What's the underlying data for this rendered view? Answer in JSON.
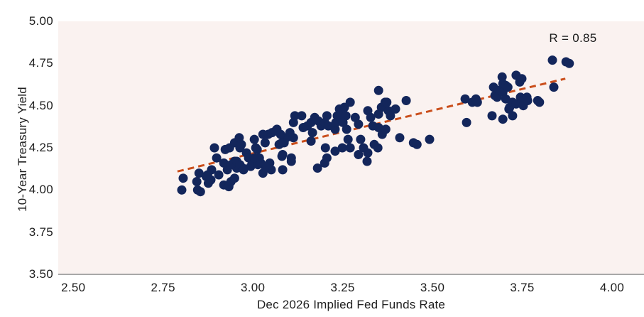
{
  "chart_data": {
    "type": "scatter",
    "title": "",
    "xlabel": "Dec 2026 Implied Fed Funds Rate",
    "ylabel": "10-Year Treasury Yield",
    "annotation": "R = 0.85",
    "xlim": [
      2.458,
      4.089
    ],
    "ylim": [
      3.5,
      5.0
    ],
    "x_ticks": [
      "2.50",
      "2.75",
      "3.00",
      "3.25",
      "3.50",
      "3.75",
      "4.00"
    ],
    "x_tick_values": [
      2.5,
      2.75,
      3.0,
      3.25,
      3.5,
      3.75,
      4.0
    ],
    "y_ticks": [
      "3.50",
      "3.75",
      "4.00",
      "4.25",
      "4.50",
      "4.75",
      "5.00"
    ],
    "y_tick_values": [
      3.5,
      3.75,
      4.0,
      4.25,
      4.5,
      4.75,
      5.0
    ],
    "grid": false,
    "legend": "none",
    "point_color": "#13265b",
    "plot_bg": "#faf2f0",
    "axis_line_color": "#a8a8a8",
    "trend_line": {
      "style": "dashed",
      "color": "#ca4e1b",
      "x1": 2.79,
      "y1": 4.11,
      "x2": 3.87,
      "y2": 4.66
    },
    "points": [
      [
        2.806,
        4.07
      ],
      [
        2.802,
        4.0
      ],
      [
        2.844,
        4.05
      ],
      [
        2.846,
        4.0
      ],
      [
        2.854,
        3.99
      ],
      [
        2.85,
        4.1
      ],
      [
        2.87,
        4.08
      ],
      [
        2.876,
        4.04
      ],
      [
        2.883,
        4.06
      ],
      [
        2.874,
        4.09
      ],
      [
        2.885,
        4.12
      ],
      [
        2.893,
        4.25
      ],
      [
        2.899,
        4.19
      ],
      [
        2.905,
        4.09
      ],
      [
        2.919,
        4.03
      ],
      [
        2.923,
        4.24
      ],
      [
        2.935,
        4.25
      ],
      [
        2.933,
        4.02
      ],
      [
        2.949,
        4.28
      ],
      [
        2.962,
        4.31
      ],
      [
        2.964,
        4.25
      ],
      [
        2.949,
        4.17
      ],
      [
        2.955,
        4.13
      ],
      [
        2.972,
        4.13
      ],
      [
        2.982,
        4.22
      ],
      [
        2.988,
        4.19
      ],
      [
        2.994,
        4.14
      ],
      [
        3.004,
        4.3
      ],
      [
        3.008,
        4.25
      ],
      [
        3.018,
        4.19
      ],
      [
        3.022,
        4.16
      ],
      [
        3.028,
        4.33
      ],
      [
        3.034,
        4.28
      ],
      [
        3.043,
        4.33
      ],
      [
        3.053,
        4.34
      ],
      [
        3.067,
        4.36
      ],
      [
        3.073,
        4.27
      ],
      [
        3.047,
        4.16
      ],
      [
        3.051,
        4.12
      ],
      [
        3.028,
        4.1
      ],
      [
        3.081,
        4.2
      ],
      [
        2.919,
        4.16
      ],
      [
        2.929,
        4.12
      ],
      [
        2.939,
        4.15
      ],
      [
        2.955,
        4.17
      ],
      [
        2.964,
        4.15
      ],
      [
        2.939,
        4.05
      ],
      [
        2.949,
        4.07
      ],
      [
        2.974,
        4.12
      ],
      [
        2.998,
        4.17
      ],
      [
        3.014,
        4.15
      ],
      [
        3.004,
        4.19
      ],
      [
        3.034,
        4.14
      ],
      [
        2.968,
        4.27
      ],
      [
        3.012,
        4.24
      ],
      [
        3.093,
        4.31
      ],
      [
        3.087,
        4.28
      ],
      [
        3.063,
        4.35
      ],
      [
        3.077,
        4.33
      ],
      [
        3.081,
        4.28
      ],
      [
        3.083,
        4.21
      ],
      [
        3.103,
        4.34
      ],
      [
        3.113,
        4.4
      ],
      [
        3.117,
        4.44
      ],
      [
        3.113,
        4.31
      ],
      [
        3.107,
        4.19
      ],
      [
        3.136,
        4.44
      ],
      [
        3.14,
        4.37
      ],
      [
        3.152,
        4.38
      ],
      [
        3.162,
        4.4
      ],
      [
        3.166,
        4.34
      ],
      [
        3.172,
        4.43
      ],
      [
        3.182,
        4.41
      ],
      [
        3.162,
        4.29
      ],
      [
        3.19,
        4.38
      ],
      [
        3.2,
        4.4
      ],
      [
        3.206,
        4.44
      ],
      [
        3.21,
        4.38
      ],
      [
        3.202,
        4.25
      ],
      [
        3.206,
        4.19
      ],
      [
        3.229,
        4.36
      ],
      [
        3.231,
        4.4
      ],
      [
        3.235,
        4.44
      ],
      [
        3.241,
        4.48
      ],
      [
        3.245,
        4.45
      ],
      [
        3.255,
        4.49
      ],
      [
        3.259,
        4.44
      ],
      [
        3.251,
        4.4
      ],
      [
        3.261,
        4.36
      ],
      [
        3.271,
        4.52
      ],
      [
        3.285,
        4.43
      ],
      [
        3.294,
        4.39
      ],
      [
        3.265,
        4.3
      ],
      [
        3.271,
        4.25
      ],
      [
        3.249,
        4.25
      ],
      [
        3.229,
        4.23
      ],
      [
        3.3,
        4.3
      ],
      [
        3.308,
        4.25
      ],
      [
        3.32,
        4.47
      ],
      [
        3.328,
        4.43
      ],
      [
        3.334,
        4.38
      ],
      [
        3.35,
        4.45
      ],
      [
        3.358,
        4.49
      ],
      [
        3.368,
        4.52
      ],
      [
        3.377,
        4.47
      ],
      [
        3.383,
        4.44
      ],
      [
        3.35,
        4.37
      ],
      [
        3.36,
        4.33
      ],
      [
        3.37,
        4.36
      ],
      [
        3.348,
        4.25
      ],
      [
        3.338,
        4.27
      ],
      [
        3.32,
        4.22
      ],
      [
        3.294,
        4.21
      ],
      [
        3.318,
        4.17
      ],
      [
        3.2,
        4.16
      ],
      [
        3.18,
        4.13
      ],
      [
        3.107,
        4.17
      ],
      [
        3.083,
        4.12
      ],
      [
        3.35,
        4.59
      ],
      [
        3.373,
        4.52
      ],
      [
        3.397,
        4.48
      ],
      [
        3.427,
        4.53
      ],
      [
        3.409,
        4.31
      ],
      [
        3.447,
        4.28
      ],
      [
        3.457,
        4.27
      ],
      [
        3.492,
        4.3
      ],
      [
        3.591,
        4.54
      ],
      [
        3.611,
        4.52
      ],
      [
        3.595,
        4.4
      ],
      [
        3.621,
        4.54
      ],
      [
        3.625,
        4.52
      ],
      [
        3.666,
        4.44
      ],
      [
        3.67,
        4.61
      ],
      [
        3.674,
        4.56
      ],
      [
        3.68,
        4.55
      ],
      [
        3.686,
        4.59
      ],
      [
        3.694,
        4.67
      ],
      [
        3.696,
        4.63
      ],
      [
        3.696,
        4.58
      ],
      [
        3.704,
        4.62
      ],
      [
        3.71,
        4.61
      ],
      [
        3.696,
        4.42
      ],
      [
        3.704,
        4.54
      ],
      [
        3.713,
        4.48
      ],
      [
        3.715,
        4.49
      ],
      [
        3.723,
        4.44
      ],
      [
        3.723,
        4.52
      ],
      [
        3.733,
        4.68
      ],
      [
        3.733,
        4.51
      ],
      [
        3.743,
        4.64
      ],
      [
        3.749,
        4.66
      ],
      [
        3.745,
        4.55
      ],
      [
        3.749,
        4.53
      ],
      [
        3.753,
        4.5
      ],
      [
        3.763,
        4.55
      ],
      [
        3.765,
        4.53
      ],
      [
        3.793,
        4.53
      ],
      [
        3.798,
        4.52
      ],
      [
        3.834,
        4.77
      ],
      [
        3.838,
        4.61
      ],
      [
        3.872,
        4.76
      ],
      [
        3.881,
        4.75
      ]
    ]
  }
}
